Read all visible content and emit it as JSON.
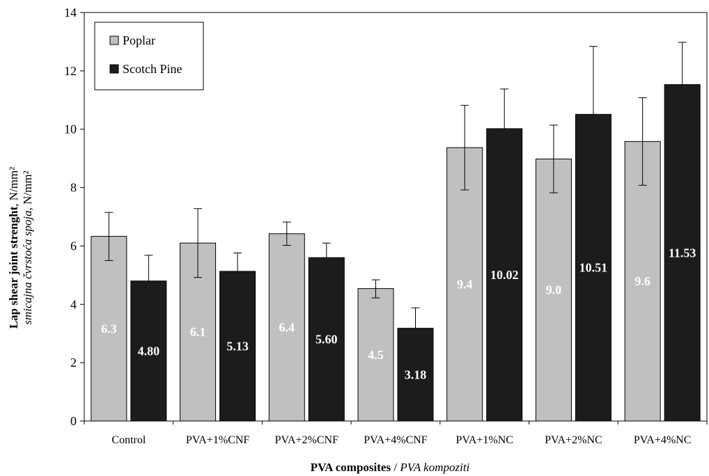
{
  "chart_data": {
    "type": "bar",
    "categories": [
      "Control",
      "PVA+1%CNF",
      "PVA+2%CNF",
      "PVA+4%CNF",
      "PVA+1%NC",
      "PVA+2%NC",
      "PVA+4%NC"
    ],
    "series": [
      {
        "name": "Poplar",
        "color": "#c0c0c0",
        "values": [
          6.33,
          6.1,
          6.42,
          4.54,
          9.37,
          8.98,
          9.58
        ],
        "value_labels": [
          "6.3",
          "6.1",
          "6.4",
          "4.5",
          "9.4",
          "9.0",
          "9.6"
        ],
        "error_low": [
          5.5,
          4.92,
          6.02,
          4.22,
          7.92,
          7.82,
          8.08
        ],
        "error_high": [
          7.15,
          7.28,
          6.82,
          4.84,
          10.82,
          10.14,
          11.08
        ]
      },
      {
        "name": "Scotch Pine",
        "color": "#1c1c1c",
        "values": [
          4.8,
          5.13,
          5.6,
          3.18,
          10.02,
          10.51,
          11.53
        ],
        "value_labels": [
          "4.80",
          "5.13",
          "5.60",
          "3.18",
          "10.02",
          "10.51",
          "11.53"
        ],
        "error_low": [
          4.8,
          5.13,
          5.6,
          3.18,
          10.02,
          10.51,
          11.53
        ],
        "error_high": [
          5.68,
          5.76,
          6.1,
          3.88,
          11.38,
          12.84,
          12.98
        ]
      }
    ],
    "ylim": [
      0,
      14
    ],
    "yticks": [
      0,
      2,
      4,
      6,
      8,
      10,
      12,
      14
    ],
    "ylabel": {
      "line1_bold": "Lap shear joint strenght",
      "line1_normal": ", N/mm²",
      "line2_italic": "smicajna čvrstoća spoja",
      "line2_normal": ", N/mm²"
    },
    "xlabel": {
      "bold": "PVA composites",
      "normal": " / ",
      "italic": "PVA kompoziti"
    },
    "legend": {
      "position": "top-left",
      "border": true
    },
    "grid": false
  }
}
